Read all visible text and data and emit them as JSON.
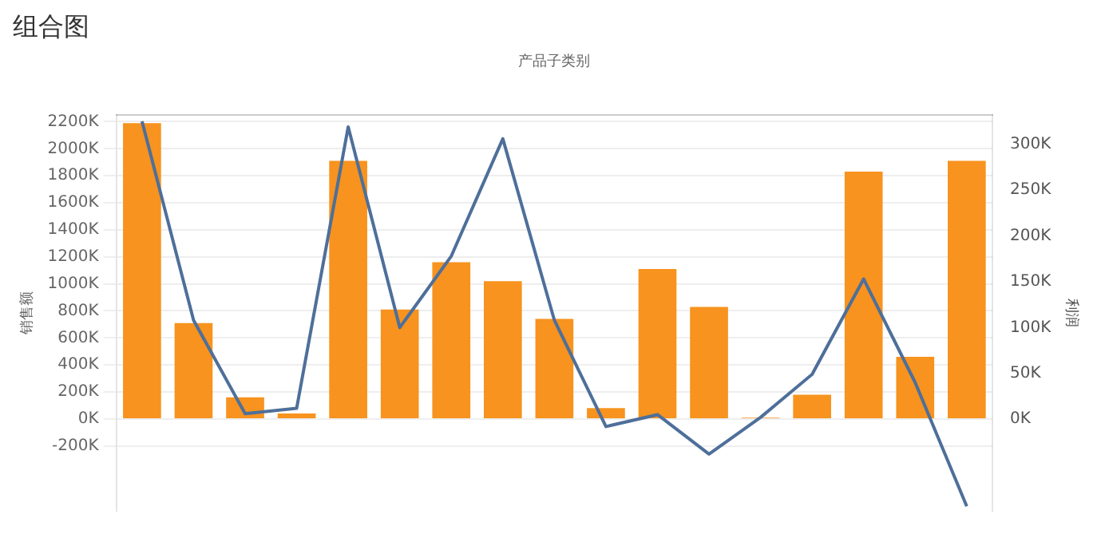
{
  "chart_data": {
    "type": "bar",
    "title": "组合图",
    "xlabel": "产品子类别",
    "ylabel": "销售额",
    "y2label": "利润",
    "categories": [
      null,
      null,
      null,
      null,
      null,
      null,
      null,
      null,
      null,
      null,
      null,
      null,
      null,
      null,
      null,
      null,
      null
    ],
    "series": [
      {
        "color": "#f7931e",
        "values": [
          2190,
          710,
          160,
          40,
          1910,
          810,
          1160,
          1020,
          740,
          80,
          1110,
          830,
          10,
          180,
          1830,
          460,
          1910
        ]
      },
      {
        "type": "line",
        "axis": "y2",
        "color": "#4e6f9a",
        "values": [
          325,
          108,
          6,
          12,
          319,
          100,
          178,
          306,
          108,
          -8,
          5,
          -38,
          2,
          49,
          153,
          40,
          -95
        ]
      }
    ],
    "ylim": [
      -680,
      2250
    ],
    "yticks": [
      {
        "value": -200,
        "label": "-200K"
      },
      {
        "value": 0,
        "label": "0K"
      },
      {
        "value": 200,
        "label": "200K"
      },
      {
        "value": 400,
        "label": "400K"
      },
      {
        "value": 600,
        "label": "600K"
      },
      {
        "value": 800,
        "label": "800K"
      },
      {
        "value": 1000,
        "label": "1000K"
      },
      {
        "value": 1200,
        "label": "1200K"
      },
      {
        "value": 1400,
        "label": "1400K"
      },
      {
        "value": 1600,
        "label": "1600K"
      },
      {
        "value": 1800,
        "label": "1800K"
      },
      {
        "value": 2000,
        "label": "2000K"
      },
      {
        "value": 2200,
        "label": "2200K"
      }
    ],
    "y2lim": [
      -100,
      332
    ],
    "y2ticks": [
      {
        "value": 0,
        "label": "0K"
      },
      {
        "value": 50,
        "label": "50K"
      },
      {
        "value": 100,
        "label": "100K"
      },
      {
        "value": 150,
        "label": "150K"
      },
      {
        "value": 200,
        "label": "200K"
      },
      {
        "value": 250,
        "label": "250K"
      },
      {
        "value": 300,
        "label": "300K"
      }
    ],
    "grid": "y",
    "legend": false,
    "marker": "none"
  }
}
